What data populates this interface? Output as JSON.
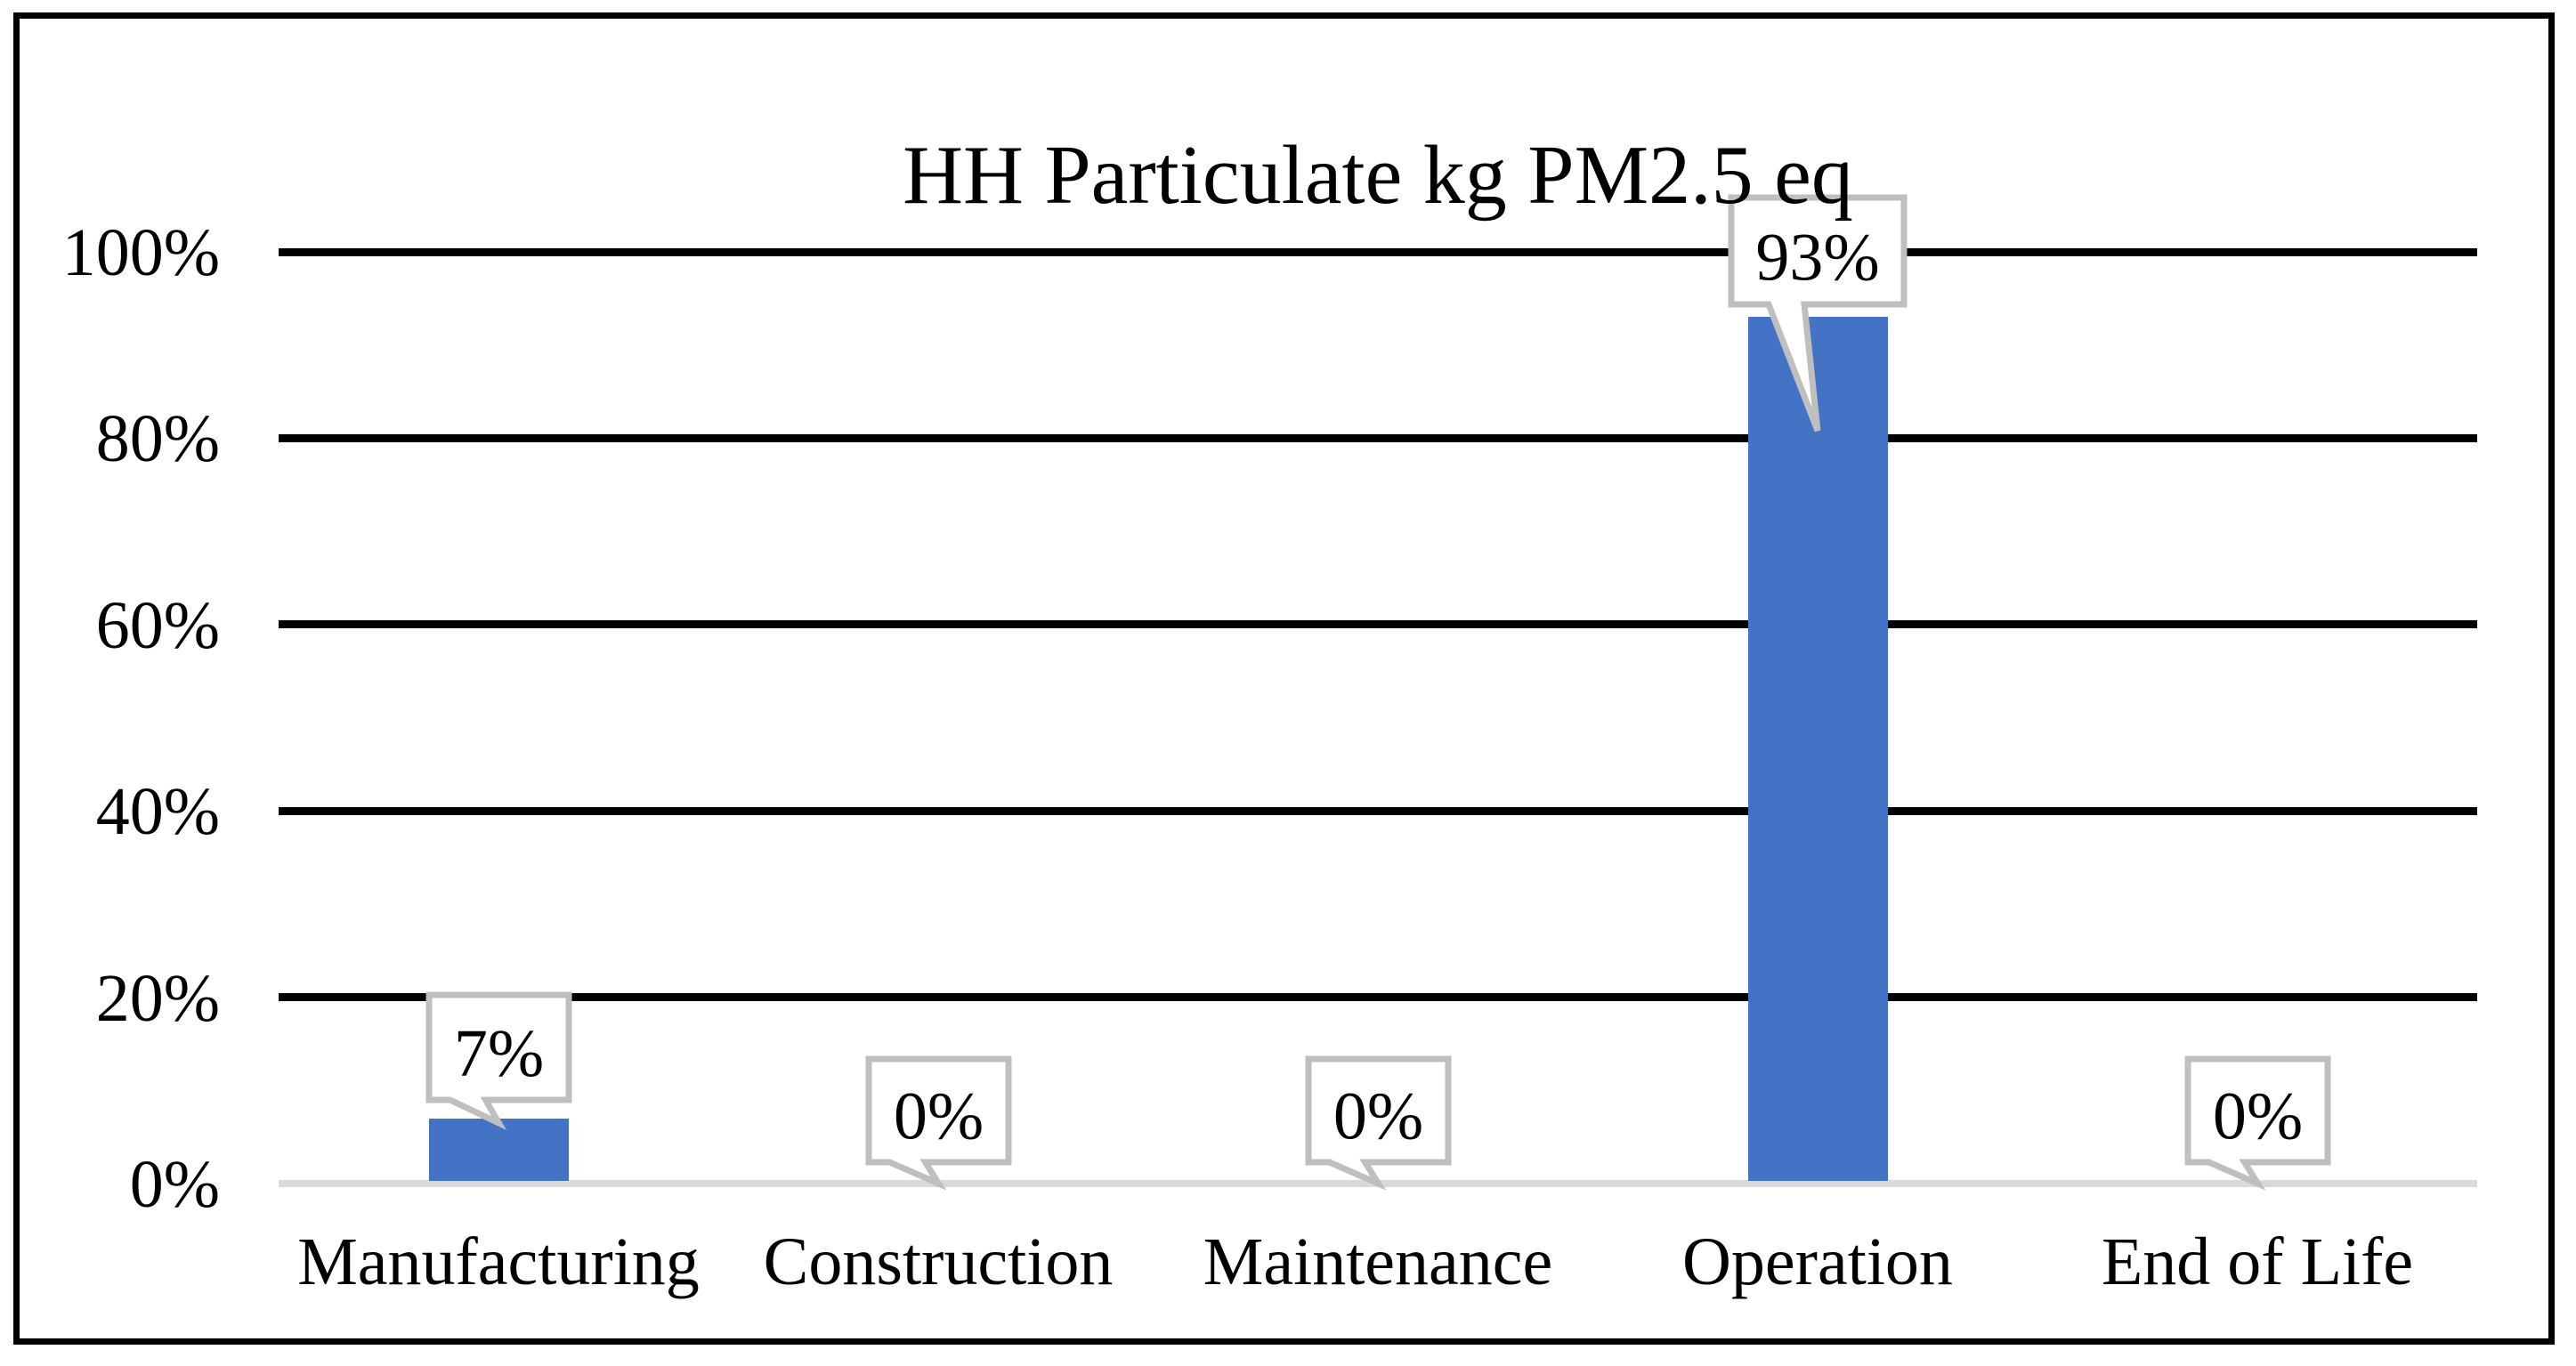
{
  "chart_data": {
    "type": "bar",
    "title": "HH Particulate kg PM2.5 eq",
    "categories": [
      "Manufacturing",
      "Construction",
      "Maintenance",
      "Operation",
      "End of Life"
    ],
    "values": [
      7,
      0,
      0,
      93,
      0
    ],
    "data_labels": [
      "7%",
      "0%",
      "0%",
      "93%",
      "0%"
    ],
    "y_ticks": [
      "0%",
      "20%",
      "40%",
      "60%",
      "80%",
      "100%"
    ],
    "xlabel": "",
    "ylabel": "",
    "ylim": [
      0,
      100
    ],
    "grid": true,
    "legend_position": "none",
    "bar_color": "#4472C4",
    "gridline_color": "#000000",
    "baseline_color": "#D9D9D9",
    "callout_border_color": "#BFBFBF",
    "callout_fill_color": "#FFFFFF",
    "text_color": "#000000"
  }
}
